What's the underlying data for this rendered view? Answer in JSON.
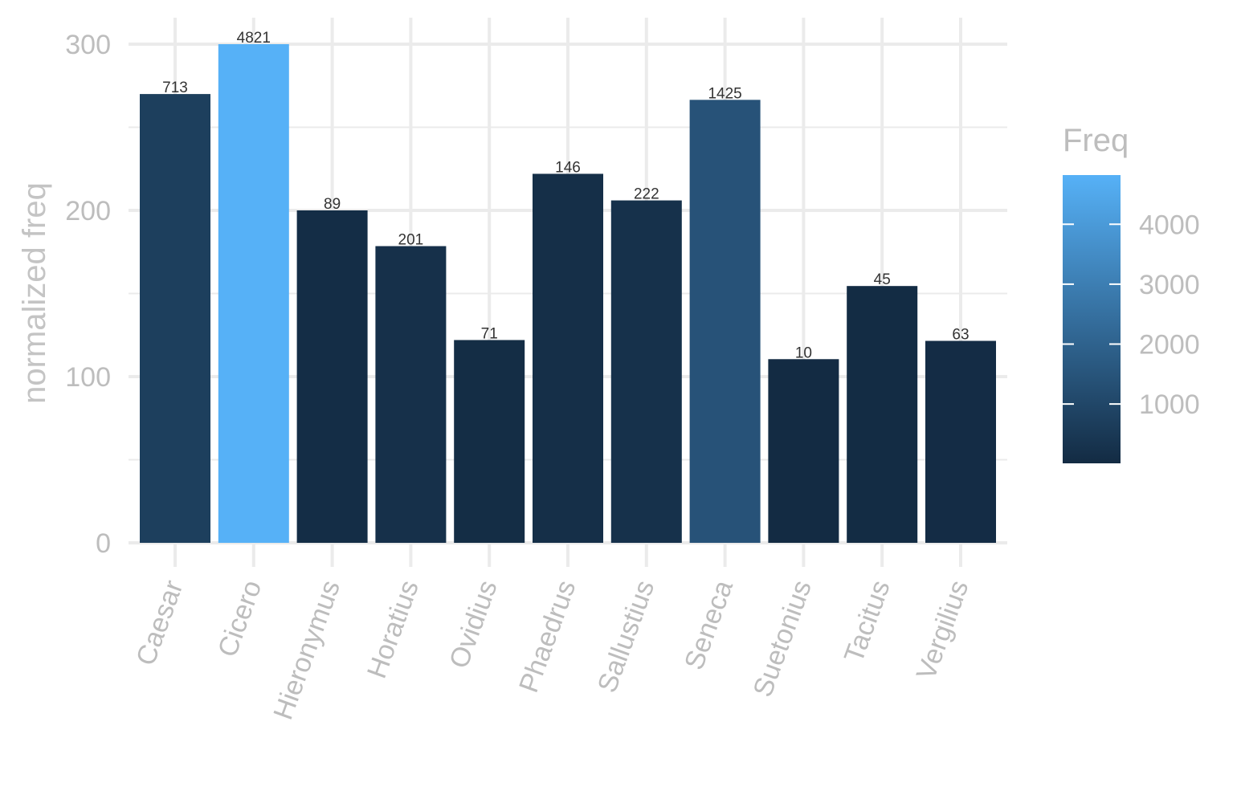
{
  "chart_data": {
    "type": "bar",
    "title": "",
    "xlabel": "",
    "ylabel": "normalized freq",
    "ylim": [
      0,
      300
    ],
    "y_ticks": [
      0,
      100,
      200,
      300
    ],
    "grid": true,
    "categories": [
      "Caesar",
      "Cicero",
      "Hieronymus",
      "Horatius",
      "Ovidius",
      "Phaedrus",
      "Sallustius",
      "Seneca",
      "Suetonius",
      "Tacitus",
      "Vergilius"
    ],
    "values": [
      270,
      300,
      200,
      178.5,
      122,
      222,
      206,
      266.5,
      110.5,
      154.5,
      121.5
    ],
    "fill_values": [
      713,
      4821,
      89,
      201,
      71,
      146,
      222,
      1425,
      10,
      45,
      63
    ],
    "bar_labels": [
      "713",
      "4821",
      "89",
      "201",
      "71",
      "146",
      "222",
      "1425",
      "10",
      "45",
      "63"
    ],
    "legend": {
      "title": "Freq",
      "placement": "right",
      "ticks": [
        1000,
        2000,
        3000,
        4000
      ],
      "tick_labels": [
        "1000",
        "2000",
        "3000",
        "4000"
      ],
      "range": [
        10,
        4821
      ],
      "color_low": "#132B43",
      "color_high": "#56B1F7"
    }
  }
}
